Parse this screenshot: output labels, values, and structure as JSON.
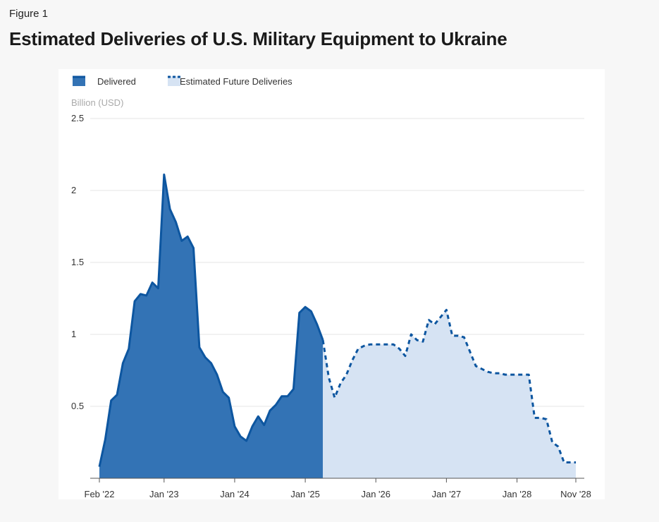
{
  "figure_label": "Figure 1",
  "title": "Estimated Deliveries of U.S. Military Equipment to Ukraine",
  "colors": {
    "delivered": "#3373b5",
    "delivered_line": "#0d56a0",
    "future_fill": "#d6e3f3",
    "future_line": "#0d56a0"
  },
  "chart_data": {
    "type": "area",
    "title": "Estimated Deliveries of U.S. Military Equipment to Ukraine",
    "ylabel": "Billion (USD)",
    "ylim": [
      0,
      2.5
    ],
    "yticks": [
      "0.5",
      "1",
      "1.5",
      "2",
      "2.5"
    ],
    "ytick_values": [
      0.5,
      1,
      1.5,
      2,
      2.5
    ],
    "x_start": "Feb 2022",
    "x_end": "Nov 2028",
    "xticks": [
      {
        "label": "Feb '22",
        "month_index": 0
      },
      {
        "label": "Jan '23",
        "month_index": 11
      },
      {
        "label": "Jan '24",
        "month_index": 23
      },
      {
        "label": "Jan '25",
        "month_index": 35
      },
      {
        "label": "Jan '26",
        "month_index": 47
      },
      {
        "label": "Jan '27",
        "month_index": 59
      },
      {
        "label": "Jan '28",
        "month_index": 71
      },
      {
        "label": "Nov '28",
        "month_index": 81
      }
    ],
    "grid": true,
    "legend": "top-left",
    "series": [
      {
        "name": "Delivered",
        "start_index": 0,
        "values": [
          0.08,
          0.27,
          0.54,
          0.58,
          0.8,
          0.9,
          1.23,
          1.28,
          1.27,
          1.36,
          1.32,
          2.11,
          1.87,
          1.78,
          1.65,
          1.68,
          1.6,
          0.91,
          0.84,
          0.8,
          0.72,
          0.6,
          0.56,
          0.36,
          0.29,
          0.26,
          0.36,
          0.43,
          0.37,
          0.47,
          0.51,
          0.57,
          0.57,
          0.62,
          1.15,
          1.19,
          1.16,
          1.07,
          0.96
        ]
      },
      {
        "name": "Estimated Future Deliveries",
        "start_index": 38,
        "values": [
          0.96,
          0.7,
          0.56,
          0.66,
          0.72,
          0.82,
          0.9,
          0.92,
          0.93,
          0.93,
          0.93,
          0.93,
          0.93,
          0.9,
          0.85,
          1.0,
          0.96,
          0.95,
          1.1,
          1.07,
          1.12,
          1.17,
          0.99,
          0.99,
          0.98,
          0.88,
          0.78,
          0.76,
          0.74,
          0.73,
          0.73,
          0.72,
          0.72,
          0.72,
          0.72,
          0.72,
          0.42,
          0.42,
          0.41,
          0.25,
          0.22,
          0.11,
          0.11,
          0.11
        ]
      }
    ]
  }
}
